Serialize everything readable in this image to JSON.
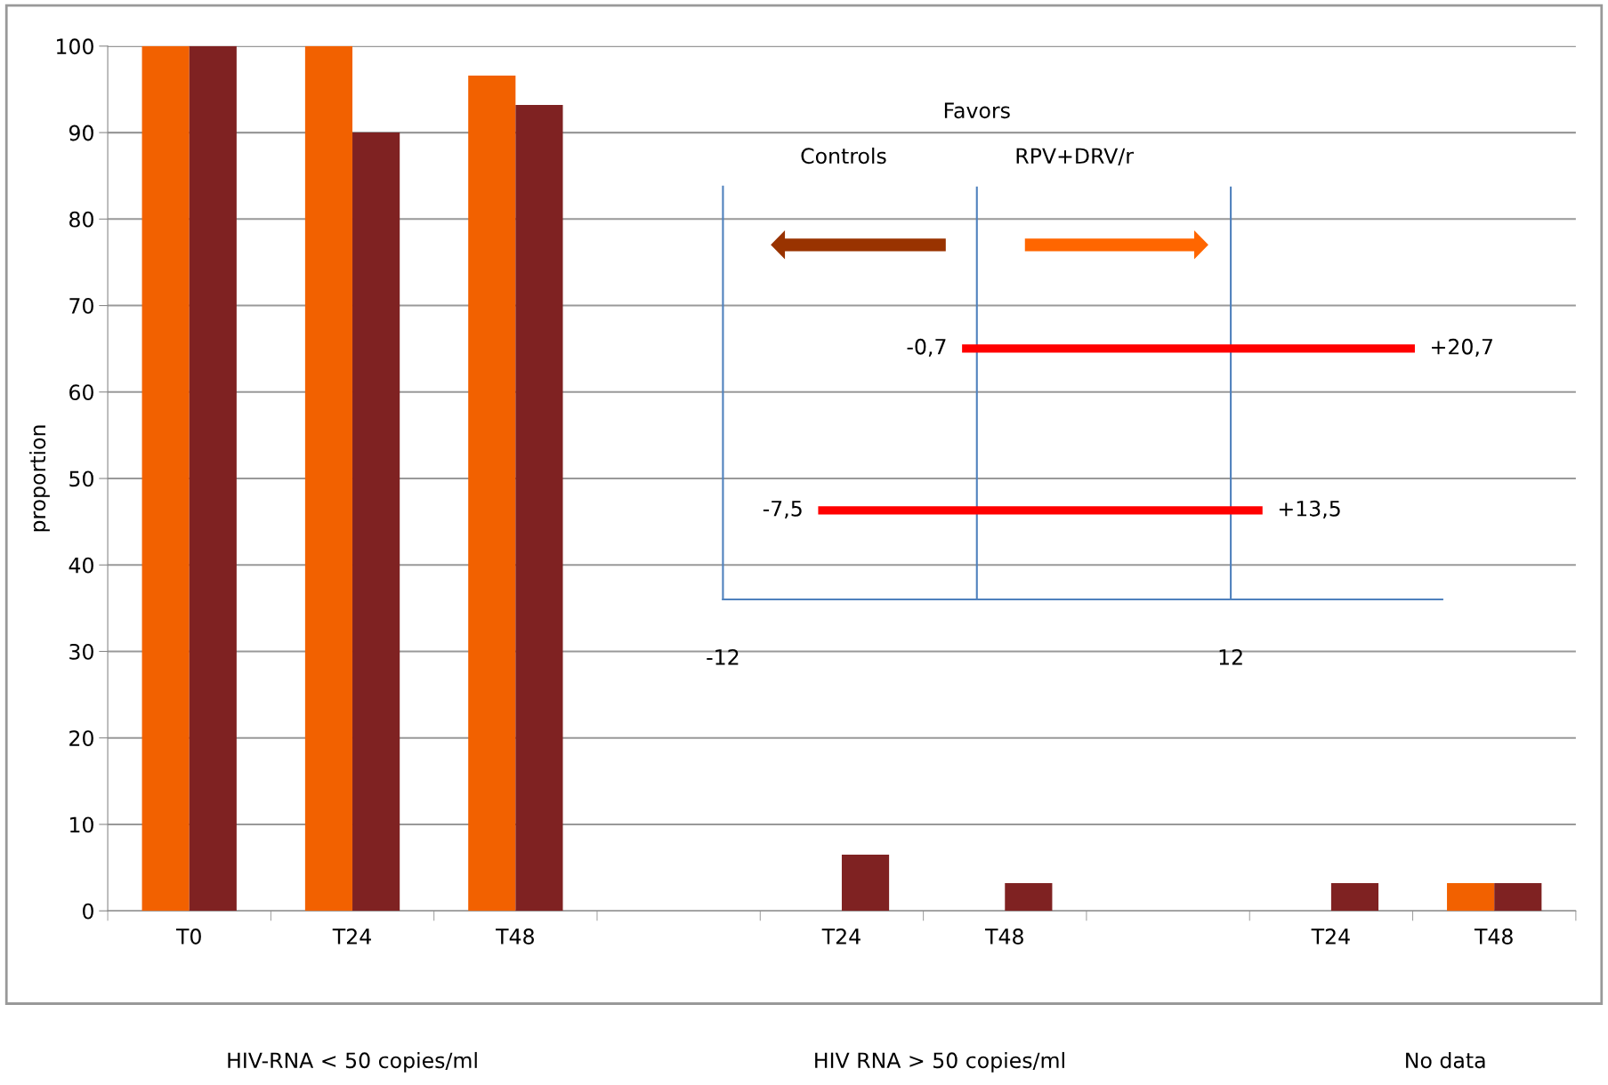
{
  "chart_data": [
    {
      "type": "bar",
      "categories": [
        "T0",
        "T24",
        "T48",
        null,
        "T24",
        "T48",
        null,
        "T24",
        "T48"
      ],
      "series": [
        {
          "color": "#f26100",
          "values": [
            100,
            100,
            96.6,
            null,
            0,
            0,
            null,
            0,
            3.2
          ]
        },
        {
          "color": "#7f2222",
          "values": [
            100,
            90,
            93.2,
            null,
            6.5,
            3.2,
            null,
            3.2,
            3.2
          ]
        }
      ],
      "ylabel": "proportion",
      "ylim": [
        0,
        100
      ],
      "yticks": [
        0,
        10,
        20,
        30,
        40,
        50,
        60,
        70,
        80,
        90,
        100
      ],
      "grid": "y",
      "annotations": [
        "HIV-RNA < 50 copies/ml",
        "HIV RNA > 50 copies/ml",
        "No data"
      ]
    },
    {
      "type": "bar",
      "orientation": "horizontal",
      "categories": [
        null,
        null
      ],
      "values": [
        21.4,
        21.0
      ],
      "base": [
        -0.7,
        -7.5
      ],
      "color": "#ff0000",
      "xlim": [
        -12,
        22
      ],
      "xticks": [
        -12,
        12
      ],
      "tick_labels": "x",
      "grid": false,
      "ref_lines": [
        {
          "axis": "x",
          "value": 0,
          "color": "#4f81bd"
        },
        {
          "axis": "x",
          "value": 12,
          "color": "#4f81bd"
        }
      ],
      "annotations": [
        {
          "text": "-0,7",
          "x": -0.7
        },
        {
          "text": "+20,7",
          "x": 20.7
        },
        {
          "text": "-7,5",
          "x": -7.5
        },
        {
          "text": "+13,5",
          "x": 13.5
        },
        "Favors",
        "Controls",
        "RPV+DRV/r"
      ]
    }
  ]
}
